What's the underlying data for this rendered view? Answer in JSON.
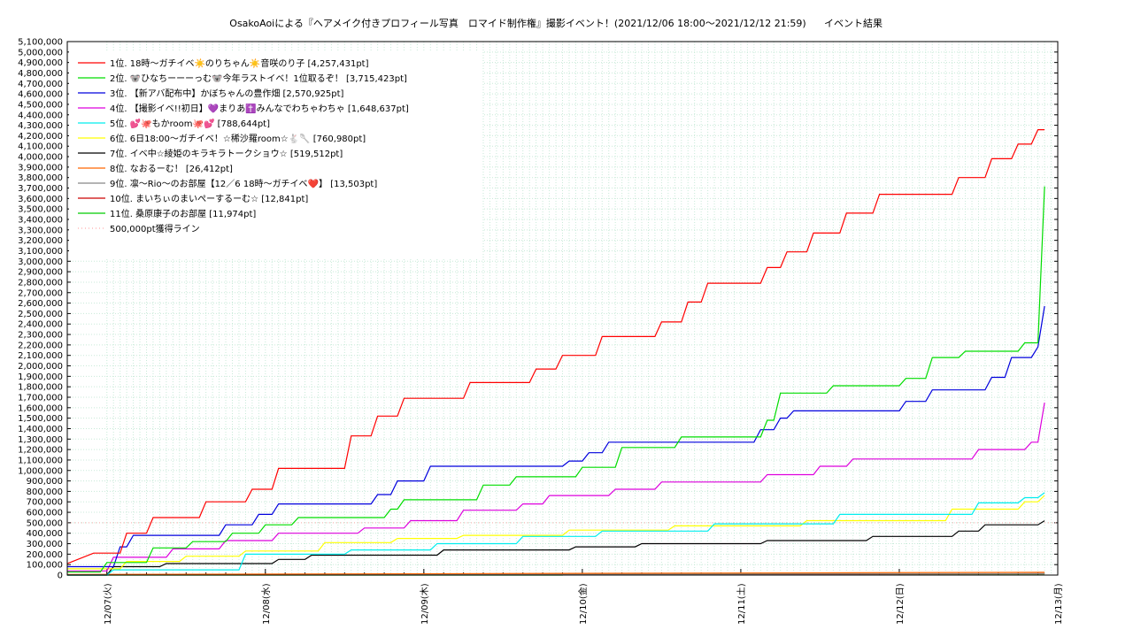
{
  "chart_data": {
    "type": "line",
    "title": "OsakoAoiによる『ヘアメイク付きプロフィール写真　ロマイド制作権』撮影イベント！(2021/12/06 18:00〜2021/12/12 21:59)",
    "subtitle": "イベント結果",
    "xlabel": "",
    "ylabel": "",
    "x_range": [
      "2021-12-06T18:00",
      "2021-12-13T00:00"
    ],
    "ylim": [
      0,
      5100000
    ],
    "y_tick_step": 100000,
    "x_ticks": [
      "12/07(火)",
      "12/08(水)",
      "12/09(木)",
      "12/10(金)",
      "12/11(土)",
      "12/12(日)",
      "12/13(月)"
    ],
    "grid": true,
    "legend_position": "top-left",
    "series": [
      {
        "name": "1位. 18時〜ガチイベ☀️のりちゃん☀️音咲のり子 [4,257,431pt]",
        "color": "#ff0000",
        "x": [
          "2021-12-06T18:00",
          "2021-12-06T22:00",
          "2021-12-07T02:00",
          "2021-12-07T03:00",
          "2021-12-07T06:00",
          "2021-12-07T07:00",
          "2021-12-07T14:00",
          "2021-12-07T15:00",
          "2021-12-07T21:00",
          "2021-12-07T22:00",
          "2021-12-08T01:00",
          "2021-12-08T02:00",
          "2021-12-08T12:00",
          "2021-12-08T13:00",
          "2021-12-08T16:00",
          "2021-12-08T17:00",
          "2021-12-08T20:00",
          "2021-12-08T21:00",
          "2021-12-09T06:00",
          "2021-12-09T07:00",
          "2021-12-09T16:00",
          "2021-12-09T17:00",
          "2021-12-09T20:00",
          "2021-12-09T21:00",
          "2021-12-10T02:00",
          "2021-12-10T03:00",
          "2021-12-10T11:00",
          "2021-12-10T12:00",
          "2021-12-10T15:00",
          "2021-12-10T16:00",
          "2021-12-10T18:00",
          "2021-12-10T19:00",
          "2021-12-11T03:00",
          "2021-12-11T04:00",
          "2021-12-11T06:00",
          "2021-12-11T07:00",
          "2021-12-11T10:00",
          "2021-12-11T11:00",
          "2021-12-11T15:00",
          "2021-12-11T16:00",
          "2021-12-11T20:00",
          "2021-12-11T21:00",
          "2021-12-12T08:00",
          "2021-12-12T09:00",
          "2021-12-12T13:00",
          "2021-12-12T14:00",
          "2021-12-12T17:00",
          "2021-12-12T18:00",
          "2021-12-12T20:00",
          "2021-12-12T21:00",
          "2021-12-12T22:00"
        ],
        "values": [
          110000,
          210000,
          210000,
          400000,
          400000,
          550000,
          550000,
          700000,
          700000,
          820000,
          820000,
          1020000,
          1020000,
          1330000,
          1330000,
          1520000,
          1520000,
          1690000,
          1690000,
          1840000,
          1840000,
          1970000,
          1970000,
          2100000,
          2100000,
          2280000,
          2280000,
          2420000,
          2420000,
          2610000,
          2610000,
          2790000,
          2790000,
          2940000,
          2940000,
          3090000,
          3090000,
          3270000,
          3270000,
          3460000,
          3460000,
          3640000,
          3640000,
          3800000,
          3800000,
          3980000,
          3980000,
          4120000,
          4120000,
          4257431,
          4257431
        ]
      },
      {
        "name": "2位. 🐨ひなちーーーっむ🐨今年ラストイベ！1位取るぞ！ [3,715,423pt]",
        "color": "#00dd00",
        "x": [
          "2021-12-06T18:00",
          "2021-12-06T23:00",
          "2021-12-07T00:00",
          "2021-12-07T06:00",
          "2021-12-07T07:00",
          "2021-12-07T12:00",
          "2021-12-07T13:00",
          "2021-12-07T18:00",
          "2021-12-07T19:00",
          "2021-12-07T23:00",
          "2021-12-08T00:00",
          "2021-12-08T04:00",
          "2021-12-08T05:00",
          "2021-12-08T18:00",
          "2021-12-08T19:00",
          "2021-12-08T20:00",
          "2021-12-08T21:00",
          "2021-12-09T08:00",
          "2021-12-09T09:00",
          "2021-12-09T13:00",
          "2021-12-09T14:00",
          "2021-12-09T23:00",
          "2021-12-10T00:00",
          "2021-12-10T05:00",
          "2021-12-10T06:00",
          "2021-12-10T14:00",
          "2021-12-10T15:00",
          "2021-12-11T03:00",
          "2021-12-11T04:00",
          "2021-12-11T05:00",
          "2021-12-11T06:00",
          "2021-12-11T13:00",
          "2021-12-11T14:00",
          "2021-12-12T00:00",
          "2021-12-12T01:00",
          "2021-12-12T04:00",
          "2021-12-12T05:00",
          "2021-12-12T09:00",
          "2021-12-12T10:00",
          "2021-12-12T18:00",
          "2021-12-12T19:00",
          "2021-12-12T21:00",
          "2021-12-12T22:00"
        ],
        "values": [
          30000,
          30000,
          120000,
          120000,
          260000,
          260000,
          320000,
          320000,
          400000,
          400000,
          480000,
          480000,
          550000,
          550000,
          630000,
          630000,
          720000,
          720000,
          860000,
          860000,
          940000,
          940000,
          1030000,
          1030000,
          1220000,
          1220000,
          1320000,
          1320000,
          1480000,
          1480000,
          1740000,
          1740000,
          1810000,
          1810000,
          1880000,
          1880000,
          2080000,
          2080000,
          2140000,
          2140000,
          2220000,
          2220000,
          3715423
        ]
      },
      {
        "name": "3位. 【新アバ配布中】かぼちゃんの豊作畑 [2,570,925pt]",
        "color": "#0000dd",
        "x": [
          "2021-12-06T18:00",
          "2021-12-07T01:00",
          "2021-12-07T02:00",
          "2021-12-07T03:00",
          "2021-12-07T04:00",
          "2021-12-07T17:00",
          "2021-12-07T18:00",
          "2021-12-07T22:00",
          "2021-12-07T23:00",
          "2021-12-08T01:00",
          "2021-12-08T02:00",
          "2021-12-08T16:00",
          "2021-12-08T17:00",
          "2021-12-08T19:00",
          "2021-12-08T20:00",
          "2021-12-09T00:00",
          "2021-12-09T01:00",
          "2021-12-09T02:00",
          "2021-12-09T03:00",
          "2021-12-09T21:00",
          "2021-12-09T22:00",
          "2021-12-10T00:00",
          "2021-12-10T01:00",
          "2021-12-10T03:00",
          "2021-12-10T04:00",
          "2021-12-10T14:00",
          "2021-12-11T02:00",
          "2021-12-11T03:00",
          "2021-12-11T05:00",
          "2021-12-11T06:00",
          "2021-12-11T07:00",
          "2021-12-11T08:00",
          "2021-12-12T00:00",
          "2021-12-12T01:00",
          "2021-12-12T04:00",
          "2021-12-12T05:00",
          "2021-12-12T13:00",
          "2021-12-12T14:00",
          "2021-12-12T16:00",
          "2021-12-12T17:00",
          "2021-12-12T20:00",
          "2021-12-12T21:00",
          "2021-12-12T22:00"
        ],
        "values": [
          80000,
          80000,
          270000,
          270000,
          380000,
          380000,
          480000,
          480000,
          580000,
          580000,
          680000,
          680000,
          770000,
          770000,
          900000,
          900000,
          1040000,
          1040000,
          1040000,
          1040000,
          1090000,
          1090000,
          1170000,
          1170000,
          1270000,
          1270000,
          1270000,
          1390000,
          1390000,
          1500000,
          1500000,
          1570000,
          1570000,
          1660000,
          1660000,
          1770000,
          1770000,
          1890000,
          1890000,
          2080000,
          2080000,
          2180000,
          2570925
        ]
      },
      {
        "name": "4位. 【撮影イベ!!初日】💜まりあ✝️みんなでわちゃわちゃ [1,648,637pt]",
        "color": "#dd00dd",
        "x": [
          "2021-12-06T18:00",
          "2021-12-07T00:00",
          "2021-12-07T01:00",
          "2021-12-07T09:00",
          "2021-12-07T10:00",
          "2021-12-07T17:00",
          "2021-12-07T18:00",
          "2021-12-08T01:00",
          "2021-12-08T02:00",
          "2021-12-08T14:00",
          "2021-12-08T15:00",
          "2021-12-08T21:00",
          "2021-12-08T22:00",
          "2021-12-09T05:00",
          "2021-12-09T06:00",
          "2021-12-09T14:00",
          "2021-12-09T15:00",
          "2021-12-09T18:00",
          "2021-12-09T19:00",
          "2021-12-10T04:00",
          "2021-12-10T05:00",
          "2021-12-10T11:00",
          "2021-12-10T12:00",
          "2021-12-11T03:00",
          "2021-12-11T04:00",
          "2021-12-11T11:00",
          "2021-12-11T12:00",
          "2021-12-11T16:00",
          "2021-12-11T17:00",
          "2021-12-12T11:00",
          "2021-12-12T12:00",
          "2021-12-12T19:00",
          "2021-12-12T20:00",
          "2021-12-12T21:00",
          "2021-12-12T22:00"
        ],
        "values": [
          40000,
          40000,
          170000,
          170000,
          250000,
          250000,
          330000,
          330000,
          400000,
          400000,
          450000,
          450000,
          520000,
          520000,
          620000,
          620000,
          680000,
          680000,
          760000,
          760000,
          820000,
          820000,
          890000,
          890000,
          960000,
          960000,
          1040000,
          1040000,
          1110000,
          1110000,
          1200000,
          1200000,
          1270000,
          1270000,
          1648637
        ]
      },
      {
        "name": "5位. 💕🐙もかroom🐙💕 [788,644pt]",
        "color": "#00eeee",
        "x": [
          "2021-12-06T18:00",
          "2021-12-07T00:00",
          "2021-12-07T01:00",
          "2021-12-07T20:00",
          "2021-12-07T21:00",
          "2021-12-08T12:00",
          "2021-12-08T13:00",
          "2021-12-09T01:00",
          "2021-12-09T02:00",
          "2021-12-09T14:00",
          "2021-12-09T15:00",
          "2021-12-10T02:00",
          "2021-12-10T03:00",
          "2021-12-10T19:00",
          "2021-12-10T20:00",
          "2021-12-11T14:00",
          "2021-12-11T15:00",
          "2021-12-12T11:00",
          "2021-12-12T12:00",
          "2021-12-12T18:00",
          "2021-12-12T19:00",
          "2021-12-12T21:00",
          "2021-12-12T22:00"
        ],
        "values": [
          0,
          0,
          50000,
          50000,
          200000,
          200000,
          240000,
          240000,
          300000,
          300000,
          370000,
          370000,
          420000,
          420000,
          490000,
          490000,
          580000,
          580000,
          690000,
          690000,
          740000,
          740000,
          788644
        ]
      },
      {
        "name": "6位. 6日18:00〜ガチイベ！☆稀沙羅room☆🐇🥄 [760,980pt]",
        "color": "#ffff00",
        "x": [
          "2021-12-06T18:00",
          "2021-12-07T02:00",
          "2021-12-07T03:00",
          "2021-12-07T11:00",
          "2021-12-07T12:00",
          "2021-12-07T20:00",
          "2021-12-07T21:00",
          "2021-12-08T08:00",
          "2021-12-08T09:00",
          "2021-12-08T19:00",
          "2021-12-08T20:00",
          "2021-12-09T05:00",
          "2021-12-09T06:00",
          "2021-12-09T21:00",
          "2021-12-09T22:00",
          "2021-12-10T13:00",
          "2021-12-10T14:00",
          "2021-12-11T09:00",
          "2021-12-11T10:00",
          "2021-12-12T07:00",
          "2021-12-12T08:00",
          "2021-12-12T18:00",
          "2021-12-12T19:00",
          "2021-12-12T21:00",
          "2021-12-12T22:00"
        ],
        "values": [
          60000,
          60000,
          130000,
          130000,
          180000,
          180000,
          230000,
          230000,
          310000,
          310000,
          350000,
          350000,
          380000,
          380000,
          430000,
          430000,
          470000,
          470000,
          520000,
          520000,
          630000,
          630000,
          700000,
          700000,
          760980
        ]
      },
      {
        "name": "7位. イベ中☆綾姫のキラキラトークショウ☆ [519,512pt]",
        "color": "#000000",
        "x": [
          "2021-12-06T18:00",
          "2021-12-07T00:00",
          "2021-12-07T01:00",
          "2021-12-07T08:00",
          "2021-12-07T09:00",
          "2021-12-08T01:00",
          "2021-12-08T02:00",
          "2021-12-08T06:00",
          "2021-12-08T07:00",
          "2021-12-09T02:00",
          "2021-12-09T03:00",
          "2021-12-09T22:00",
          "2021-12-09T23:00",
          "2021-12-10T08:00",
          "2021-12-10T09:00",
          "2021-12-11T03:00",
          "2021-12-11T04:00",
          "2021-12-11T19:00",
          "2021-12-11T20:00",
          "2021-12-12T08:00",
          "2021-12-12T09:00",
          "2021-12-12T12:00",
          "2021-12-12T13:00",
          "2021-12-12T21:00",
          "2021-12-12T22:00"
        ],
        "values": [
          0,
          0,
          80000,
          80000,
          110000,
          110000,
          150000,
          150000,
          190000,
          190000,
          240000,
          240000,
          270000,
          270000,
          300000,
          300000,
          330000,
          330000,
          370000,
          370000,
          420000,
          420000,
          480000,
          480000,
          519512
        ]
      },
      {
        "name": "8位. なおるーむ！ [26,412pt]",
        "color": "#ff6600",
        "x": [
          "2021-12-06T18:00",
          "2021-12-12T22:00"
        ],
        "values": [
          5000,
          26412
        ]
      },
      {
        "name": "9位. 凛〜Rio〜のお部屋【12／6 18時〜ガチイベ❤️】 [13,503pt]",
        "color": "#888888",
        "x": [
          "2021-12-06T18:00",
          "2021-12-12T22:00"
        ],
        "values": [
          3000,
          13503
        ]
      },
      {
        "name": "10位. まいちぃのまいぺーするーむ☆ [12,841pt]",
        "color": "#cc0000",
        "x": [
          "2021-12-06T18:00",
          "2021-12-12T22:00"
        ],
        "values": [
          2000,
          12841
        ]
      },
      {
        "name": "11位. 桑原康子のお部屋 [11,974pt]",
        "color": "#00cc00",
        "x": [
          "2021-12-06T18:00",
          "2021-12-09T21:00",
          "2021-12-09T22:00",
          "2021-12-12T22:00"
        ],
        "values": [
          0,
          0,
          11974,
          11974
        ]
      }
    ],
    "reference_line": {
      "name": "500,000pt獲得ライン",
      "value": 500000,
      "color": "#ffaaaa"
    }
  }
}
